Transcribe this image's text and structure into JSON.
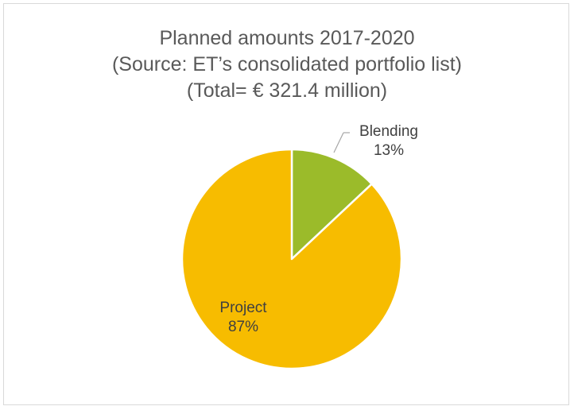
{
  "chart_data": {
    "type": "pie",
    "title_lines": [
      "Planned amounts 2017-2020",
      "(Source: ET’s consolidated portfolio list)",
      "(Total=  € 321.4 million)"
    ],
    "slices": [
      {
        "label": "Blending",
        "value": 13,
        "display": "13%",
        "color": "#9bbb2a"
      },
      {
        "label": "Project",
        "value": 87,
        "display": "87%",
        "color": "#f7bc00"
      }
    ],
    "legend": "none",
    "start": "12 o'clock, clockwise"
  }
}
